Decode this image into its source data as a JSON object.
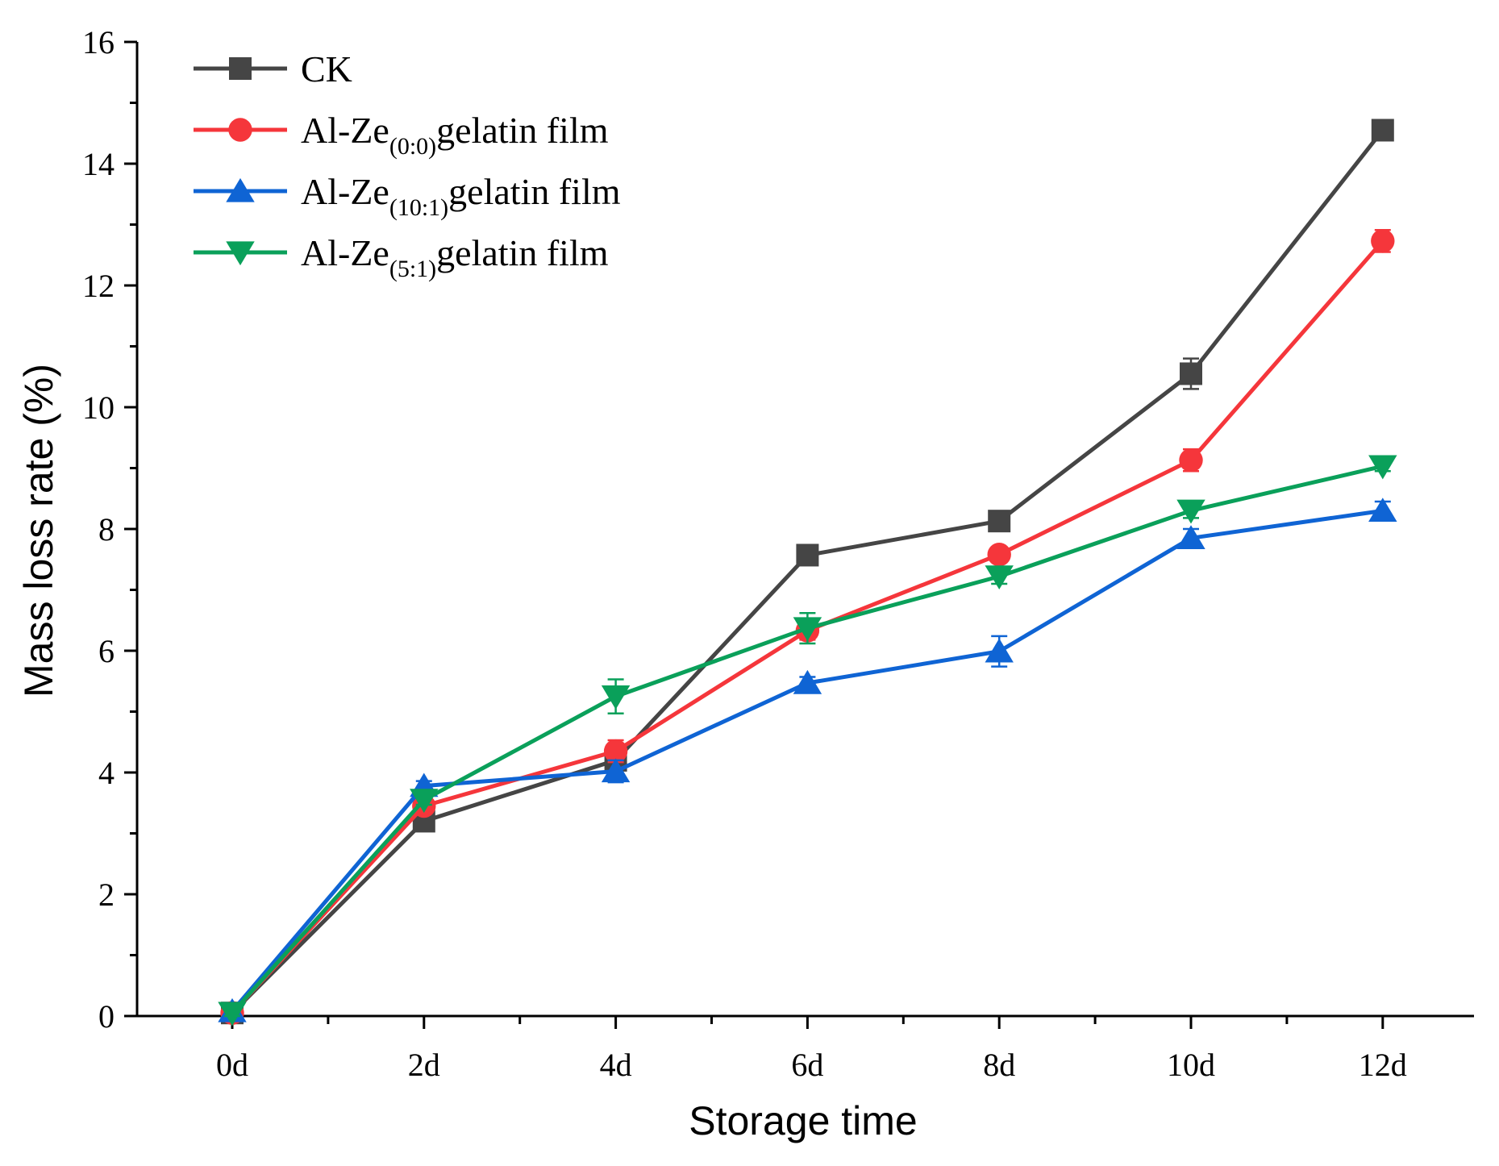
{
  "chart_data": {
    "type": "line",
    "title": "",
    "xlabel": "Storage time",
    "ylabel": "Mass loss rate (%)",
    "categories": [
      "0d",
      "2d",
      "4d",
      "6d",
      "8d",
      "10d",
      "12d"
    ],
    "ylim": [
      0,
      16
    ],
    "yticks": [
      "0",
      "2",
      "4",
      "6",
      "8",
      "10",
      "12",
      "14",
      "16"
    ],
    "legend_position": "top-left",
    "series": [
      {
        "name": "CK",
        "legend_main": "CK",
        "legend_sub": "",
        "legend_tail": "",
        "color": "#454545",
        "marker": "square",
        "values": [
          0.05,
          3.2,
          4.2,
          7.57,
          8.13,
          10.55,
          14.55
        ],
        "errors": [
          0.05,
          0.08,
          0.1,
          0.15,
          0.08,
          0.25,
          0.1
        ]
      },
      {
        "name": "Al-Ze(0:0)gelatin film",
        "legend_main": "Al-Ze",
        "legend_sub": "(0:0)",
        "legend_tail": "gelatin film",
        "color": "#f5363b",
        "marker": "circle",
        "values": [
          0.05,
          3.45,
          4.35,
          6.33,
          7.58,
          9.13,
          12.73
        ],
        "errors": [
          0.05,
          0.08,
          0.18,
          0.15,
          0.1,
          0.18,
          0.18
        ]
      },
      {
        "name": "Al-Ze(10:1)gelatin film",
        "legend_main": "Al-Ze",
        "legend_sub": "(10:1)",
        "legend_tail": "gelatin film",
        "color": "#0f64d4",
        "marker": "triangle-up",
        "values": [
          0.08,
          3.78,
          4.02,
          5.47,
          5.99,
          7.85,
          8.3
        ],
        "errors": [
          0.05,
          0.08,
          0.18,
          0.1,
          0.25,
          0.15,
          0.15
        ]
      },
      {
        "name": "Al-Ze(5:1)gelatin film",
        "legend_main": "Al-Ze",
        "legend_sub": "(5:1)",
        "legend_tail": "gelatin film",
        "color": "#0aa05a",
        "marker": "triangle-down",
        "values": [
          0.05,
          3.55,
          5.25,
          6.37,
          7.22,
          8.3,
          9.03
        ],
        "errors": [
          0.05,
          0.08,
          0.28,
          0.25,
          0.12,
          0.12,
          0.08
        ]
      }
    ]
  }
}
